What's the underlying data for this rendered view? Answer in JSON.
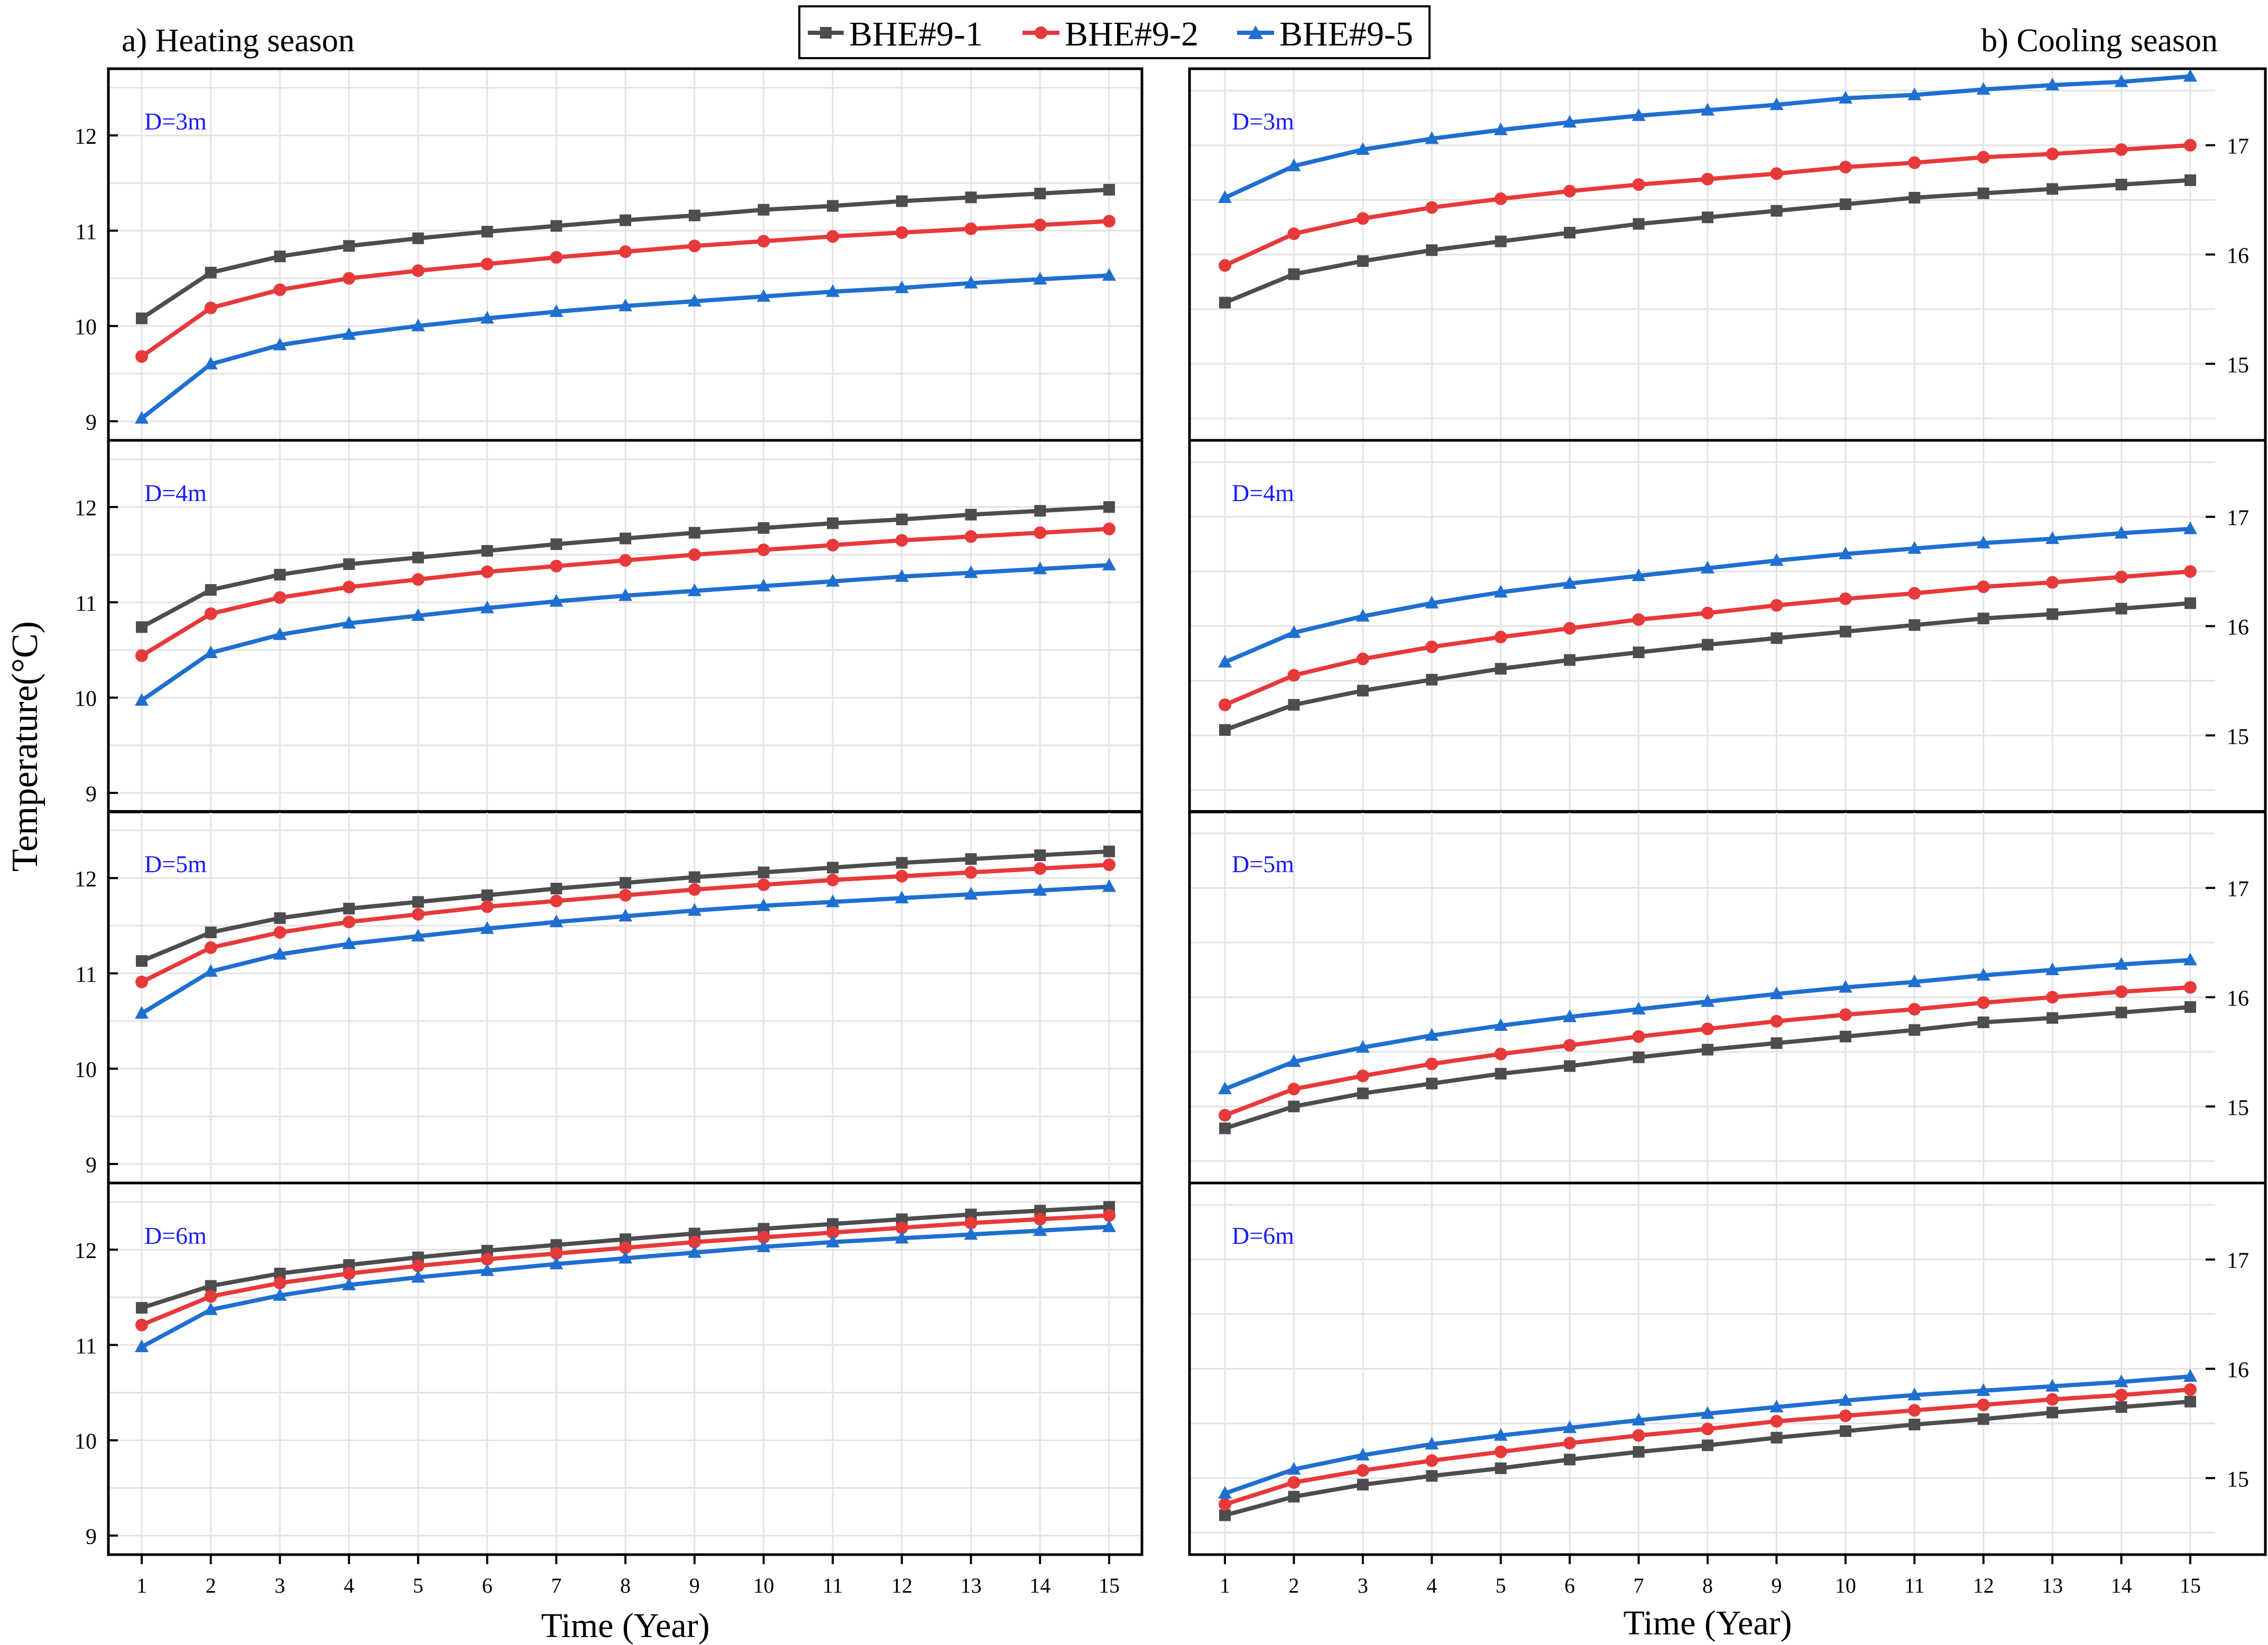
{
  "legend": {
    "items": [
      {
        "label": "BHE#9-1",
        "color": "#4d4d4d",
        "marker": "square"
      },
      {
        "label": "BHE#9-2",
        "color": "#e8393a",
        "marker": "circle"
      },
      {
        "label": "BHE#9-5",
        "color": "#1f6fd1",
        "marker": "triangle"
      }
    ]
  },
  "headings": {
    "left": "a) Heating season",
    "right": "b) Cooling season"
  },
  "axes": {
    "ylabel": "Temperature(°C)",
    "xlabel_left": "Time (Year)",
    "xlabel_right": "Time (Year)"
  },
  "chart_data": [
    {
      "type": "line",
      "title": "D=3m",
      "season": "Heating season",
      "x": [
        1,
        2,
        3,
        4,
        5,
        6,
        7,
        8,
        9,
        10,
        11,
        12,
        13,
        14,
        15
      ],
      "ylim": [
        8.8,
        12.7
      ],
      "yticks": [
        9,
        10,
        11,
        12
      ],
      "xlabel": "Time (Year)",
      "ylabel": "Temperature(°C)",
      "series": [
        {
          "name": "BHE#9-1",
          "values": [
            10.08,
            10.56,
            10.73,
            10.84,
            10.92,
            10.99,
            11.05,
            11.11,
            11.16,
            11.22,
            11.26,
            11.31,
            11.35,
            11.39,
            11.43
          ]
        },
        {
          "name": "BHE#9-2",
          "values": [
            9.68,
            10.19,
            10.38,
            10.5,
            10.58,
            10.65,
            10.72,
            10.78,
            10.84,
            10.89,
            10.94,
            10.98,
            11.02,
            11.06,
            11.1
          ]
        },
        {
          "name": "BHE#9-5",
          "values": [
            9.03,
            9.6,
            9.8,
            9.91,
            10.0,
            10.08,
            10.15,
            10.21,
            10.26,
            10.31,
            10.36,
            10.4,
            10.45,
            10.49,
            10.53
          ]
        }
      ]
    },
    {
      "type": "line",
      "title": "D=4m",
      "season": "Heating season",
      "x": [
        1,
        2,
        3,
        4,
        5,
        6,
        7,
        8,
        9,
        10,
        11,
        12,
        13,
        14,
        15
      ],
      "ylim": [
        8.8,
        12.7
      ],
      "yticks": [
        9,
        10,
        11,
        12
      ],
      "xlabel": "Time (Year)",
      "ylabel": "Temperature(°C)",
      "series": [
        {
          "name": "BHE#9-1",
          "values": [
            10.74,
            11.13,
            11.29,
            11.4,
            11.47,
            11.54,
            11.61,
            11.67,
            11.73,
            11.78,
            11.83,
            11.87,
            11.92,
            11.96,
            12.0
          ]
        },
        {
          "name": "BHE#9-2",
          "values": [
            10.44,
            10.88,
            11.05,
            11.16,
            11.24,
            11.32,
            11.38,
            11.44,
            11.5,
            11.55,
            11.6,
            11.65,
            11.69,
            11.73,
            11.77
          ]
        },
        {
          "name": "BHE#9-5",
          "values": [
            9.97,
            10.47,
            10.66,
            10.78,
            10.86,
            10.94,
            11.01,
            11.07,
            11.12,
            11.17,
            11.22,
            11.27,
            11.31,
            11.35,
            11.39
          ]
        }
      ]
    },
    {
      "type": "line",
      "title": "D=5m",
      "season": "Heating season",
      "x": [
        1,
        2,
        3,
        4,
        5,
        6,
        7,
        8,
        9,
        10,
        11,
        12,
        13,
        14,
        15
      ],
      "ylim": [
        8.8,
        12.7
      ],
      "yticks": [
        9,
        10,
        11,
        12
      ],
      "xlabel": "Time (Year)",
      "ylabel": "Temperature(°C)",
      "series": [
        {
          "name": "BHE#9-1",
          "values": [
            11.13,
            11.43,
            11.58,
            11.68,
            11.75,
            11.82,
            11.89,
            11.95,
            12.01,
            12.06,
            12.11,
            12.16,
            12.2,
            12.24,
            12.28
          ]
        },
        {
          "name": "BHE#9-2",
          "values": [
            10.91,
            11.27,
            11.43,
            11.54,
            11.62,
            11.7,
            11.76,
            11.82,
            11.88,
            11.93,
            11.98,
            12.02,
            12.06,
            12.1,
            12.14
          ]
        },
        {
          "name": "BHE#9-5",
          "values": [
            10.58,
            11.02,
            11.2,
            11.31,
            11.39,
            11.47,
            11.54,
            11.6,
            11.66,
            11.71,
            11.75,
            11.79,
            11.83,
            11.87,
            11.91
          ]
        }
      ]
    },
    {
      "type": "line",
      "title": "D=6m",
      "season": "Heating season",
      "x": [
        1,
        2,
        3,
        4,
        5,
        6,
        7,
        8,
        9,
        10,
        11,
        12,
        13,
        14,
        15
      ],
      "ylim": [
        8.8,
        12.7
      ],
      "yticks": [
        9,
        10,
        11,
        12
      ],
      "xlabel": "Time (Year)",
      "ylabel": "Temperature(°C)",
      "series": [
        {
          "name": "BHE#9-1",
          "values": [
            11.39,
            11.62,
            11.75,
            11.84,
            11.92,
            11.99,
            12.05,
            12.11,
            12.17,
            12.22,
            12.27,
            12.32,
            12.37,
            12.41,
            12.45
          ]
        },
        {
          "name": "BHE#9-2",
          "values": [
            11.21,
            11.51,
            11.65,
            11.75,
            11.83,
            11.9,
            11.96,
            12.02,
            12.08,
            12.13,
            12.18,
            12.23,
            12.28,
            12.32,
            12.36
          ]
        },
        {
          "name": "BHE#9-5",
          "values": [
            10.98,
            11.37,
            11.52,
            11.63,
            11.71,
            11.78,
            11.85,
            11.91,
            11.97,
            12.03,
            12.08,
            12.12,
            12.16,
            12.2,
            12.24
          ]
        }
      ]
    },
    {
      "type": "line",
      "title": "D=3m",
      "season": "Cooling season",
      "x": [
        1,
        2,
        3,
        4,
        5,
        6,
        7,
        8,
        9,
        10,
        11,
        12,
        13,
        14,
        15
      ],
      "ylim": [
        14.3,
        17.7
      ],
      "yticks": [
        15,
        16,
        17
      ],
      "xlabel": "Time (Year)",
      "ylabel": "Temperature(°C)",
      "series": [
        {
          "name": "BHE#9-1",
          "values": [
            15.56,
            15.82,
            15.94,
            16.04,
            16.12,
            16.2,
            16.28,
            16.34,
            16.4,
            16.46,
            16.52,
            16.56,
            16.6,
            16.64,
            16.68
          ]
        },
        {
          "name": "BHE#9-2",
          "values": [
            15.9,
            16.19,
            16.33,
            16.43,
            16.51,
            16.58,
            16.64,
            16.69,
            16.74,
            16.8,
            16.84,
            16.89,
            16.92,
            16.96,
            17.0
          ]
        },
        {
          "name": "BHE#9-5",
          "values": [
            16.52,
            16.81,
            16.96,
            17.06,
            17.14,
            17.21,
            17.27,
            17.32,
            17.37,
            17.43,
            17.46,
            17.51,
            17.55,
            17.58,
            17.63
          ]
        }
      ]
    },
    {
      "type": "line",
      "title": "D=4m",
      "season": "Cooling season",
      "x": [
        1,
        2,
        3,
        4,
        5,
        6,
        7,
        8,
        9,
        10,
        11,
        12,
        13,
        14,
        15
      ],
      "ylim": [
        14.3,
        17.7
      ],
      "yticks": [
        15,
        16,
        17
      ],
      "xlabel": "Time (Year)",
      "ylabel": "Temperature(°C)",
      "series": [
        {
          "name": "BHE#9-1",
          "values": [
            15.05,
            15.28,
            15.41,
            15.51,
            15.61,
            15.69,
            15.76,
            15.83,
            15.89,
            15.95,
            16.01,
            16.07,
            16.11,
            16.16,
            16.21
          ]
        },
        {
          "name": "BHE#9-2",
          "values": [
            15.28,
            15.55,
            15.7,
            15.81,
            15.9,
            15.98,
            16.06,
            16.12,
            16.19,
            16.25,
            16.3,
            16.36,
            16.4,
            16.45,
            16.5
          ]
        },
        {
          "name": "BHE#9-5",
          "values": [
            15.67,
            15.94,
            16.09,
            16.21,
            16.31,
            16.39,
            16.46,
            16.53,
            16.6,
            16.66,
            16.71,
            16.76,
            16.8,
            16.85,
            16.89
          ]
        }
      ]
    },
    {
      "type": "line",
      "title": "D=5m",
      "season": "Cooling season",
      "x": [
        1,
        2,
        3,
        4,
        5,
        6,
        7,
        8,
        9,
        10,
        11,
        12,
        13,
        14,
        15
      ],
      "ylim": [
        14.3,
        17.7
      ],
      "yticks": [
        15,
        16,
        17
      ],
      "xlabel": "Time (Year)",
      "ylabel": "Temperature(°C)",
      "series": [
        {
          "name": "BHE#9-1",
          "values": [
            14.8,
            15.0,
            15.12,
            15.21,
            15.3,
            15.37,
            15.45,
            15.52,
            15.58,
            15.64,
            15.7,
            15.77,
            15.81,
            15.86,
            15.91
          ]
        },
        {
          "name": "BHE#9-2",
          "values": [
            14.92,
            15.16,
            15.28,
            15.39,
            15.48,
            15.56,
            15.64,
            15.71,
            15.78,
            15.84,
            15.89,
            15.95,
            16.0,
            16.05,
            16.09
          ]
        },
        {
          "name": "BHE#9-5",
          "values": [
            15.16,
            15.41,
            15.54,
            15.65,
            15.74,
            15.82,
            15.89,
            15.96,
            16.03,
            16.09,
            16.14,
            16.2,
            16.25,
            16.3,
            16.34
          ]
        }
      ]
    },
    {
      "type": "line",
      "title": "D=6m",
      "season": "Cooling season",
      "x": [
        1,
        2,
        3,
        4,
        5,
        6,
        7,
        8,
        9,
        10,
        11,
        12,
        13,
        14,
        15
      ],
      "ylim": [
        14.3,
        17.7
      ],
      "yticks": [
        15,
        16,
        17
      ],
      "xlabel": "Time (Year)",
      "ylabel": "Temperature(°C)",
      "series": [
        {
          "name": "BHE#9-1",
          "values": [
            14.66,
            14.83,
            14.94,
            15.02,
            15.09,
            15.17,
            15.24,
            15.3,
            15.37,
            15.43,
            15.49,
            15.54,
            15.6,
            15.65,
            15.7
          ]
        },
        {
          "name": "BHE#9-2",
          "values": [
            14.76,
            14.96,
            15.07,
            15.16,
            15.24,
            15.32,
            15.39,
            15.45,
            15.52,
            15.57,
            15.62,
            15.67,
            15.72,
            15.76,
            15.81
          ]
        },
        {
          "name": "BHE#9-5",
          "values": [
            14.86,
            15.08,
            15.21,
            15.31,
            15.39,
            15.46,
            15.53,
            15.59,
            15.65,
            15.71,
            15.76,
            15.8,
            15.84,
            15.88,
            15.93
          ]
        }
      ]
    }
  ]
}
